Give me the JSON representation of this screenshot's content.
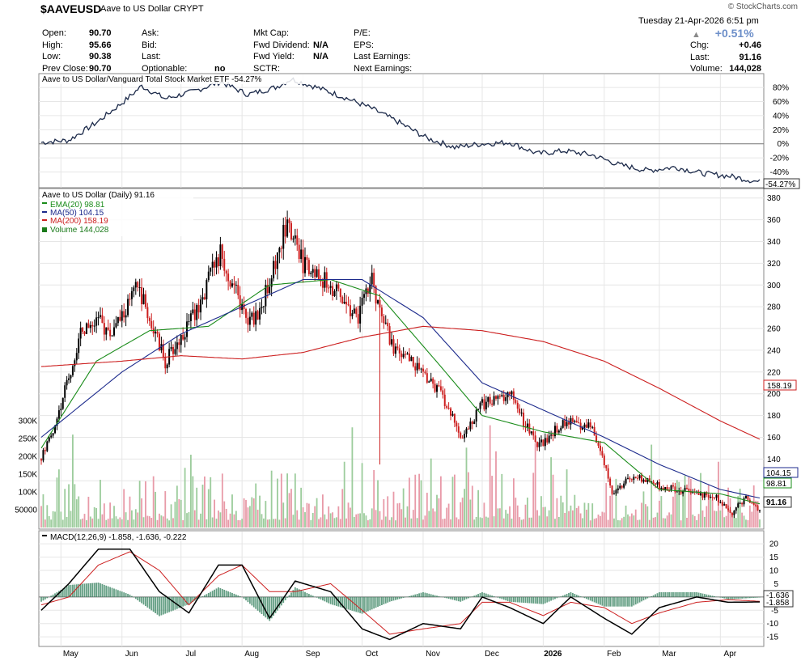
{
  "header": {
    "symbol": "$AAVEUSD",
    "name": "Aave to US Dollar",
    "exchange": "CRYPT",
    "watermark": "© StockCharts.com",
    "datetime": "Tuesday  21-Apr-2026  6:51 pm",
    "col1": [
      {
        "label": "Open:",
        "value": "90.70"
      },
      {
        "label": "High:",
        "value": "95.66"
      },
      {
        "label": "Low:",
        "value": "90.38"
      },
      {
        "label": "Prev Close:",
        "value": "90.70"
      }
    ],
    "col2": [
      {
        "label": "Ask:",
        "value": ""
      },
      {
        "label": "Bid:",
        "value": ""
      },
      {
        "label": "Last:",
        "value": ""
      },
      {
        "label": "Optionable:",
        "value": "no"
      }
    ],
    "col3": [
      {
        "label": "Mkt Cap:",
        "value": ""
      },
      {
        "label": "Fwd Dividend:",
        "value": "N/A"
      },
      {
        "label": "Fwd Yield:",
        "value": "N/A"
      },
      {
        "label": "SCTR:",
        "value": ""
      }
    ],
    "col4": [
      {
        "label": "P/E:",
        "value": ""
      },
      {
        "label": "EPS:",
        "value": ""
      },
      {
        "label": "Last Earnings:",
        "value": ""
      },
      {
        "label": "Next Earnings:",
        "value": ""
      }
    ],
    "pct_change": "+0.51%",
    "col5": [
      {
        "label": "Chg:",
        "value": "+0.46"
      },
      {
        "label": "Last:",
        "value": "91.16"
      },
      {
        "label": "Volume:",
        "value": "144,028"
      }
    ]
  },
  "chart_data": [
    {
      "type": "line",
      "panel": "relative-strength",
      "title": "Aave to US Dollar/Vanguard Total Stock Market ETF -54.27%",
      "ylim": [
        -60,
        95
      ],
      "y_ticks": [
        -40,
        -20,
        0,
        20,
        40,
        60,
        80
      ],
      "y_tick_labels": [
        "-40%",
        "-20%",
        "0%",
        "20%",
        "40%",
        "60%",
        "80%"
      ],
      "last_label": "-54.27%",
      "x": [
        "2025-04-21",
        "2025-05-05",
        "2025-05-19",
        "2025-06-02",
        "2025-06-11",
        "2025-06-23",
        "2025-07-07",
        "2025-07-21",
        "2025-08-04",
        "2025-08-18",
        "2025-08-26",
        "2025-09-08",
        "2025-09-22",
        "2025-10-06",
        "2025-10-20",
        "2025-11-03",
        "2025-11-17",
        "2025-12-01",
        "2025-12-15",
        "2025-12-29",
        "2026-01-12",
        "2026-01-26",
        "2026-02-09",
        "2026-02-23",
        "2026-03-09",
        "2026-03-23",
        "2026-04-06",
        "2026-04-21"
      ],
      "y": [
        2,
        5,
        30,
        60,
        82,
        64,
        74,
        88,
        70,
        80,
        92,
        80,
        66,
        50,
        30,
        8,
        -5,
        0,
        2,
        -14,
        -10,
        -16,
        -30,
        -38,
        -33,
        -42,
        -46,
        -54.27
      ],
      "color": "#1c2a4a"
    },
    {
      "type": "candlestick",
      "panel": "price",
      "title": "Aave to US Dollar (Daily) 91.16",
      "ylim": [
        80,
        385
      ],
      "y_ticks": [
        120,
        140,
        160,
        180,
        200,
        220,
        240,
        260,
        280,
        300,
        320,
        340,
        360,
        380
      ],
      "x_ticks": [
        "May",
        "Jun",
        "Jul",
        "Aug",
        "Sep",
        "Oct",
        "Nov",
        "Dec",
        "2026",
        "Feb",
        "Mar",
        "Apr"
      ],
      "x_tick_dates": [
        "2025-05-01",
        "2025-06-01",
        "2025-07-01",
        "2025-08-01",
        "2025-09-01",
        "2025-10-01",
        "2025-11-01",
        "2025-12-01",
        "2026-01-01",
        "2026-02-01",
        "2026-03-01",
        "2026-04-01"
      ],
      "legend": [
        {
          "name": "EMA(20) 98.81",
          "color": "#1a8c1a"
        },
        {
          "name": "MA(50) 104.15",
          "color": "#1c2a8c"
        },
        {
          "name": "MA(200) 158.19",
          "color": "#cc1f1f"
        },
        {
          "name": "Volume 144,028",
          "color": "#1a7a1a"
        }
      ],
      "close_path": {
        "x": [
          "2025-04-21",
          "2025-04-28",
          "2025-05-05",
          "2025-05-12",
          "2025-05-19",
          "2025-05-26",
          "2025-06-02",
          "2025-06-09",
          "2025-06-16",
          "2025-06-23",
          "2025-07-07",
          "2025-07-21",
          "2025-08-04",
          "2025-08-11",
          "2025-08-18",
          "2025-08-23",
          "2025-09-01",
          "2025-09-15",
          "2025-09-29",
          "2025-10-06",
          "2025-10-10",
          "2025-10-17",
          "2025-10-27",
          "2025-11-10",
          "2025-11-21",
          "2025-12-01",
          "2025-12-15",
          "2025-12-29",
          "2026-01-12",
          "2026-01-26",
          "2026-02-05",
          "2026-02-16",
          "2026-03-02",
          "2026-03-16",
          "2026-03-30",
          "2026-04-07",
          "2026-04-14",
          "2026-04-21"
        ],
        "y": [
          140,
          170,
          215,
          260,
          270,
          255,
          275,
          300,
          265,
          230,
          270,
          330,
          265,
          280,
          320,
          355,
          320,
          300,
          270,
          305,
          275,
          240,
          230,
          200,
          160,
          190,
          200,
          150,
          175,
          170,
          110,
          125,
          115,
          110,
          105,
          90,
          105,
          91.16
        ]
      },
      "series": [
        {
          "name": "EMA(20)",
          "last": 98.81,
          "color": "#1a8c1a",
          "x": [
            "2025-04-21",
            "2025-05-19",
            "2025-06-15",
            "2025-07-15",
            "2025-08-15",
            "2025-09-15",
            "2025-10-10",
            "2025-11-10",
            "2025-12-01",
            "2026-01-01",
            "2026-02-01",
            "2026-03-01",
            "2026-04-01",
            "2026-04-21"
          ],
          "y": [
            150,
            230,
            258,
            262,
            300,
            305,
            290,
            225,
            180,
            165,
            155,
            112,
            108,
            98.81
          ]
        },
        {
          "name": "MA(50)",
          "last": 104.15,
          "color": "#1c2a8c",
          "x": [
            "2025-04-21",
            "2025-06-01",
            "2025-07-01",
            "2025-08-01",
            "2025-09-01",
            "2025-10-01",
            "2025-11-01",
            "2025-12-01",
            "2026-01-01",
            "2026-02-01",
            "2026-03-01",
            "2026-04-01",
            "2026-04-21"
          ],
          "y": [
            160,
            220,
            255,
            280,
            305,
            305,
            270,
            210,
            185,
            160,
            135,
            112,
            104.15
          ]
        },
        {
          "name": "MA(200)",
          "last": 158.19,
          "color": "#cc1f1f",
          "x": [
            "2025-04-21",
            "2025-06-01",
            "2025-07-01",
            "2025-08-01",
            "2025-09-01",
            "2025-10-01",
            "2025-11-01",
            "2025-12-01",
            "2026-01-01",
            "2026-02-01",
            "2026-03-01",
            "2026-04-01",
            "2026-04-21"
          ],
          "y": [
            225,
            230,
            235,
            232,
            238,
            252,
            262,
            258,
            248,
            230,
            205,
            175,
            158.19
          ]
        }
      ],
      "spike_low": {
        "x": "2025-10-10",
        "y": 135
      },
      "last_label": "91.16"
    },
    {
      "type": "bar",
      "panel": "volume",
      "ylim": [
        0,
        300000
      ],
      "y_ticks": [
        50000,
        100000,
        150000,
        200000,
        250000,
        300000
      ],
      "y_tick_labels": [
        "50000",
        "100K",
        "150K",
        "200K",
        "250K",
        "300K"
      ],
      "last": "144,028"
    },
    {
      "type": "line",
      "panel": "macd",
      "title": "MACD(12,26,9) -1.858, -1.636, -0.222",
      "ylim": [
        -18,
        24
      ],
      "y_ticks": [
        -15,
        -10,
        -5,
        0,
        5,
        10,
        15,
        20
      ],
      "last_labels": [
        "-1.636",
        "-1.858"
      ],
      "x": [
        "2025-04-21",
        "2025-05-05",
        "2025-05-20",
        "2025-06-05",
        "2025-06-20",
        "2025-07-05",
        "2025-07-20",
        "2025-08-01",
        "2025-08-15",
        "2025-08-28",
        "2025-09-15",
        "2025-10-01",
        "2025-10-15",
        "2025-11-01",
        "2025-11-20",
        "2025-12-01",
        "2025-12-15",
        "2026-01-01",
        "2026-01-15",
        "2026-02-01",
        "2026-02-15",
        "2026-03-01",
        "2026-03-20",
        "2026-04-05",
        "2026-04-21"
      ],
      "macd": [
        -5,
        5,
        18,
        18,
        2,
        -6,
        12,
        12,
        -8,
        6,
        2,
        -12,
        -16,
        -10,
        -12,
        0,
        -4,
        -10,
        0,
        -8,
        -14,
        -4,
        0,
        -2,
        -1.858
      ],
      "signal": [
        -3,
        0,
        12,
        17,
        10,
        -3,
        8,
        12,
        2,
        2,
        5,
        -5,
        -14,
        -12,
        -10,
        -2,
        -2,
        -7,
        -2,
        -4,
        -10,
        -6,
        -2,
        -1,
        -1.636
      ],
      "histogram_last": -0.222,
      "colors": {
        "macd": "#000000",
        "signal": "#cc1f1f",
        "histogram": "#2f7d5a"
      }
    }
  ]
}
